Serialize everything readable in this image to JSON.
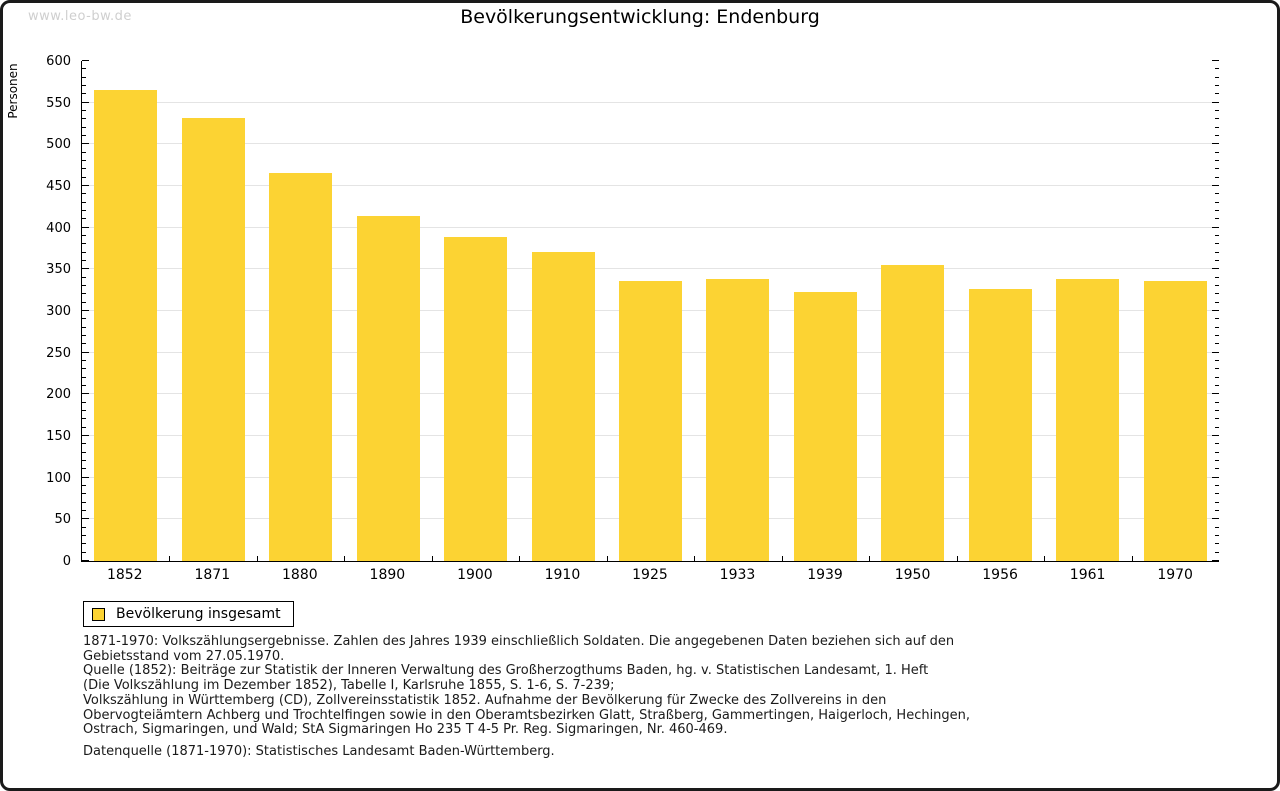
{
  "watermark": "www.leo-bw.de",
  "title": "Bevölkerungsentwicklung: Endenburg",
  "chart_data": {
    "type": "bar",
    "title": "Bevölkerungsentwicklung: Endenburg",
    "categories": [
      "1852",
      "1871",
      "1880",
      "1890",
      "1900",
      "1910",
      "1925",
      "1933",
      "1939",
      "1950",
      "1956",
      "1961",
      "1970"
    ],
    "values": [
      565,
      532,
      466,
      414,
      389,
      371,
      336,
      338,
      323,
      355,
      326,
      339,
      336
    ],
    "series_name": "Bevölkerung insgesamt",
    "xlabel": "",
    "ylabel": "Personen",
    "ylim": [
      0,
      600
    ],
    "ytick_step": 50,
    "yminor_step": 10,
    "grid": true,
    "legend_position": "bottom-left",
    "bar_color": "#fcd333"
  },
  "legend": {
    "label": "Bevölkerung insgesamt"
  },
  "footer": {
    "lines": [
      "1871-1970: Volkszählungsergebnisse. Zahlen des Jahres 1939 einschließlich Soldaten. Die angegebenen Daten beziehen sich auf den",
      "Gebietsstand vom 27.05.1970.",
      "Quelle (1852): Beiträge zur Statistik der Inneren Verwaltung des Großherzogthums Baden, hg. v. Statistischen Landesamt, 1. Heft",
      "(Die Volkszählung im Dezember 1852), Tabelle I, Karlsruhe 1855, S. 1-6, S. 7-239;",
      "Volkszählung in Württemberg (CD), Zollvereinsstatistik 1852. Aufnahme der Bevölkerung für Zwecke des Zollvereins in den",
      "Obervogteiämtern Achberg und Trochtelfingen sowie in den Oberamtsbezirken Glatt, Straßberg, Gammertingen, Haigerloch, Hechingen,",
      "Ostrach, Sigmaringen, und Wald; StA Sigmaringen Ho 235 T 4-5 Pr. Reg. Sigmaringen, Nr. 460-469."
    ],
    "datasource": "Datenquelle (1871-1970): Statistisches Landesamt Baden-Württemberg."
  },
  "colors": {
    "bar": "#fcd333",
    "grid": "#e4e4e4",
    "axis": "#000000",
    "watermark": "#cfcfcf"
  }
}
